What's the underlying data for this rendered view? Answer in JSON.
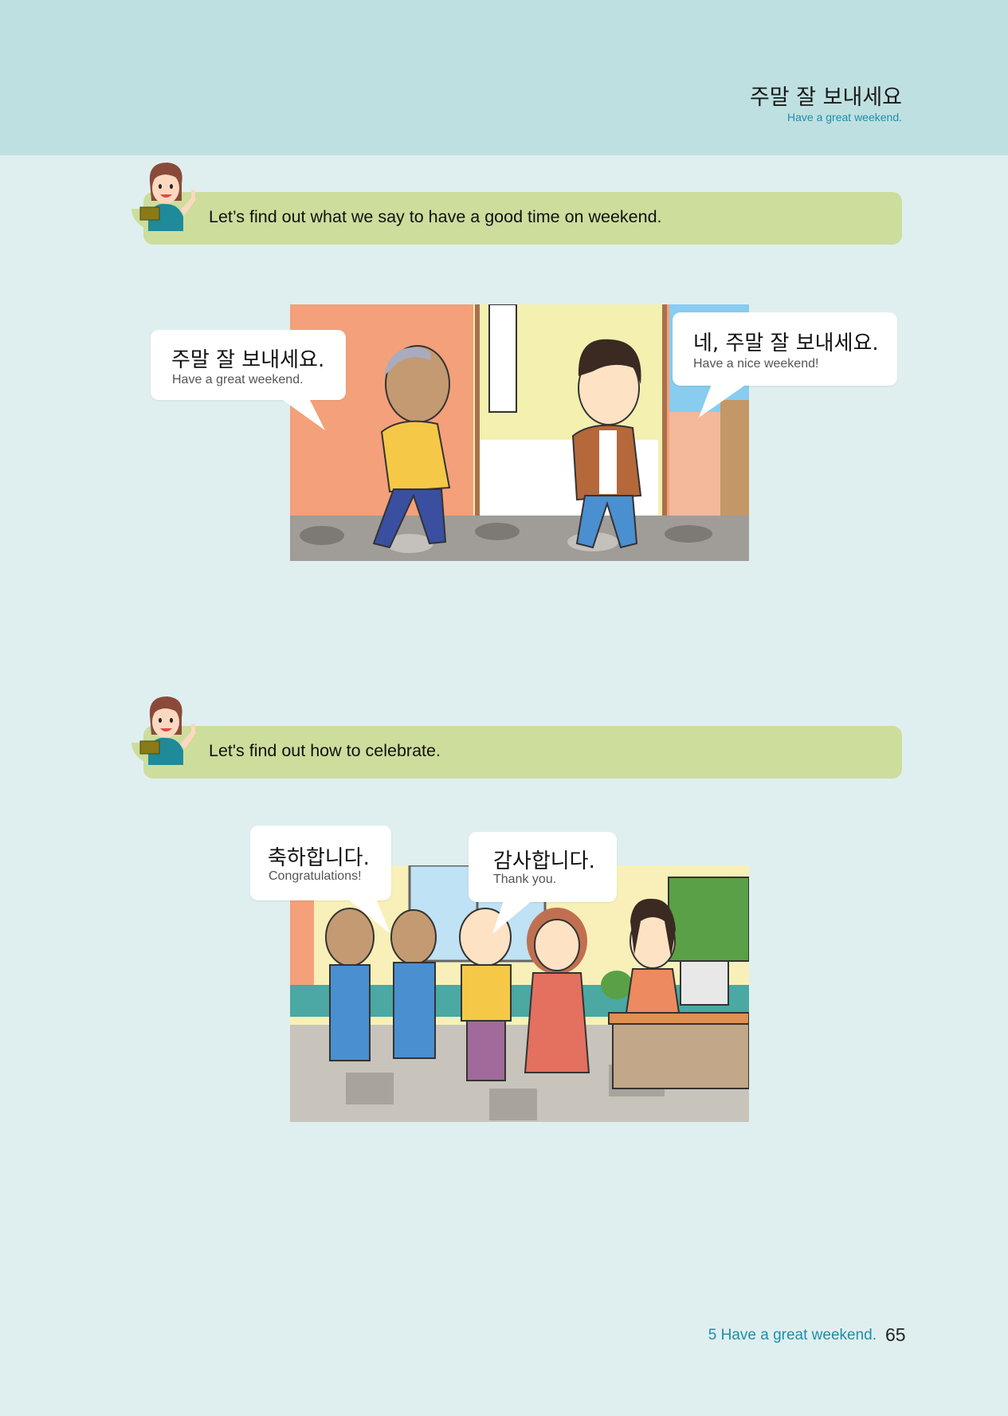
{
  "header": {
    "title_ko": "주말 잘 보내세요",
    "title_en": "Have a great weekend."
  },
  "section1": {
    "banner_text": "Let’s find out what we say to have a good time on weekend.",
    "bubble_left": {
      "ko": "주말 잘 보내세요.",
      "en": "Have a great weekend."
    },
    "bubble_right": {
      "ko": "네, 주말 잘 보내세요.",
      "en": "Have a nice weekend!"
    }
  },
  "section2": {
    "banner_text": "Let's find out how to celebrate.",
    "bubble_left": {
      "ko": "축하합니다.",
      "en": "Congratulations!"
    },
    "bubble_right": {
      "ko": "감사합니다.",
      "en": "Thank you."
    }
  },
  "footer": {
    "chapter": "5 Have a great weekend.",
    "page_number": "65"
  }
}
